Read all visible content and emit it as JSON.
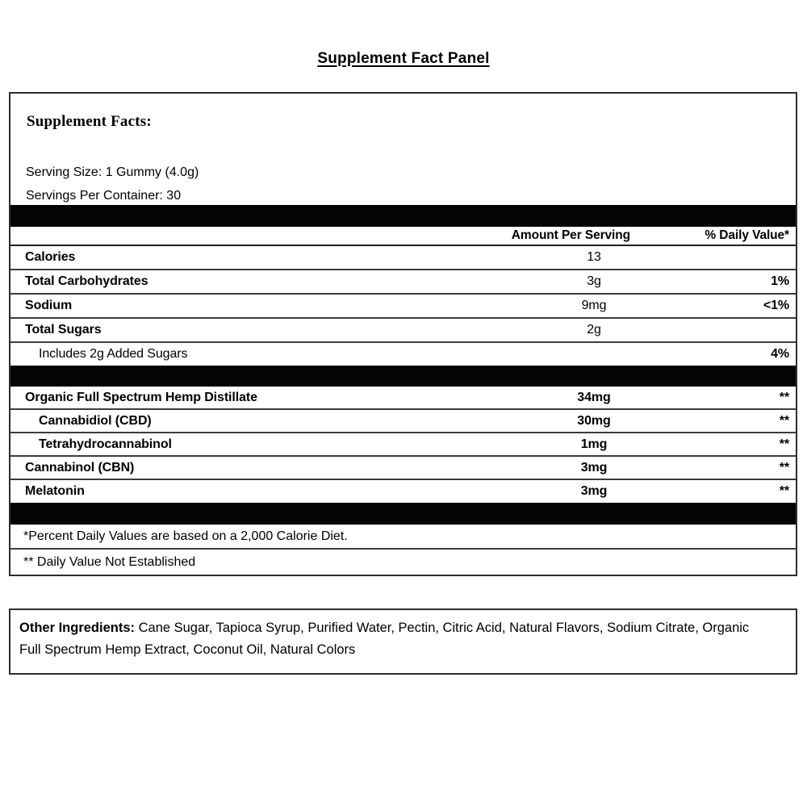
{
  "page_title": "Supplement Fact Panel",
  "panel": {
    "heading": "Supplement Facts:",
    "serving_size": "Serving Size: 1 Gummy (4.0g)",
    "servings_per_container": "Servings Per Container: 30",
    "columns": {
      "amount": "Amount Per Serving",
      "daily_value": "% Daily Value*"
    },
    "nutrients": [
      {
        "name": "Calories",
        "amount": "13",
        "dv": ""
      },
      {
        "name": "Total Carbohydrates",
        "amount": "3g",
        "dv": "1%"
      },
      {
        "name": "Sodium",
        "amount": "9mg",
        "dv": "<1%"
      },
      {
        "name": "Total Sugars",
        "amount": "2g",
        "dv": ""
      },
      {
        "name": "Includes 2g Added Sugars",
        "amount": "",
        "dv": "4%"
      }
    ],
    "actives": [
      {
        "name": "Organic Full Spectrum Hemp Distillate",
        "amount": "34mg",
        "dv": "**"
      },
      {
        "name": "Cannabidiol (CBD)",
        "amount": "30mg",
        "dv": "**"
      },
      {
        "name": "Tetrahydrocannabinol",
        "amount": "1mg",
        "dv": "**"
      },
      {
        "name": "Cannabinol (CBN)",
        "amount": "3mg",
        "dv": "**"
      },
      {
        "name": "Melatonin",
        "amount": "3mg",
        "dv": "**"
      }
    ],
    "footnotes": [
      "*Percent Daily Values are based on a 2,000 Calorie Diet.",
      "** Daily Value Not Established"
    ]
  },
  "other_ingredients": {
    "label": "Other Ingredients:",
    "text": " Cane Sugar, Tapioca Syrup, Purified Water, Pectin, Citric Acid, Natural Flavors, Sodium Citrate, Organic Full Spectrum Hemp Extract, Coconut Oil, Natural Colors"
  },
  "colors": {
    "border": "#2d2d2d",
    "separator_bar": "#040404",
    "text": "#000000",
    "background": "#ffffff"
  }
}
